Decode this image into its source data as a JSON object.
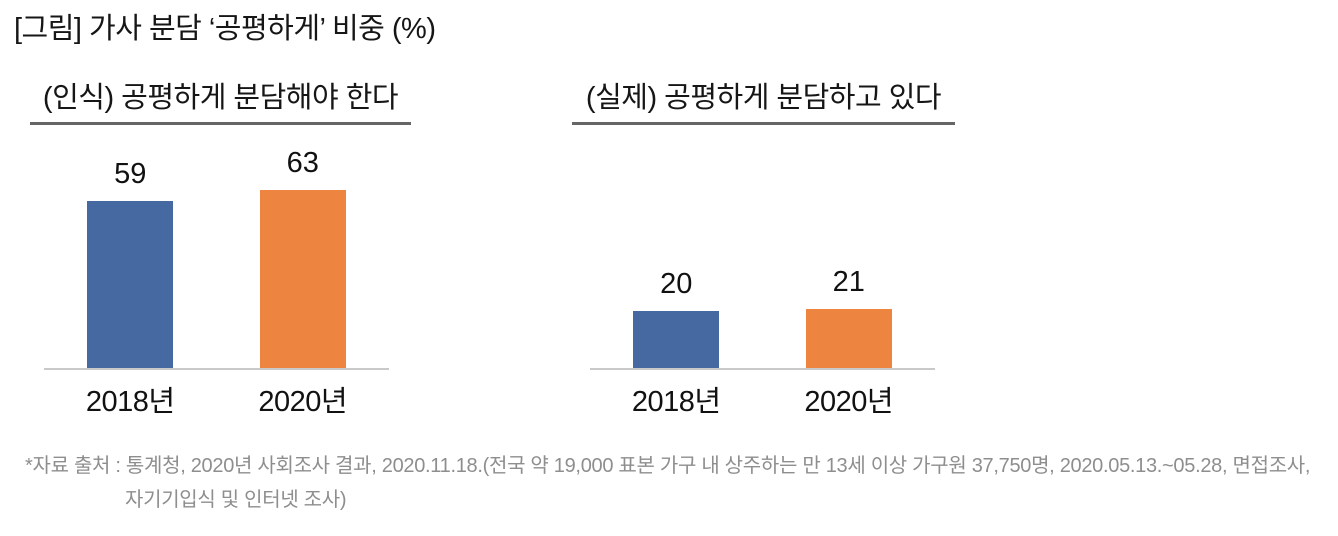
{
  "page": {
    "title": "[그림] 가사 분담 ‘공평하게’ 비중 (%)",
    "source_line1": "*자료 출처 : 통계청, 2020년 사회조사 결과, 2020.11.18.(전국 약 19,000 표본 가구 내 상주하는 만 13세 이상 가구원 37,750명, 2020.05.13.~05.28, 면접조사,",
    "source_line2": "자기기입식 및 인터넷 조사)"
  },
  "colors": {
    "bar_2018_blue": "#4569A0",
    "bar_2020_orange": "#ED8440",
    "axis_line": "#c9c9c9",
    "title_underline": "#666666",
    "source_text": "#8e8e8e",
    "text": "#111111",
    "background": "#ffffff"
  },
  "chart_data": [
    {
      "type": "bar",
      "title": "(인식) 공평하게 분담해야 한다",
      "categories": [
        "2018년",
        "2020년"
      ],
      "values": [
        59,
        63
      ],
      "unit": "%",
      "bar_colors": [
        "#4569A0",
        "#ED8440"
      ],
      "ylim": [
        0,
        70
      ],
      "data_labels": true,
      "gridlines": false,
      "legend": "none",
      "xlabel": "",
      "ylabel": ""
    },
    {
      "type": "bar",
      "title": "(실제) 공평하게 분담하고 있다",
      "categories": [
        "2018년",
        "2020년"
      ],
      "values": [
        20,
        21
      ],
      "unit": "%",
      "bar_colors": [
        "#4569A0",
        "#ED8440"
      ],
      "ylim": [
        0,
        70
      ],
      "data_labels": true,
      "gridlines": false,
      "legend": "none",
      "xlabel": "",
      "ylabel": ""
    }
  ]
}
